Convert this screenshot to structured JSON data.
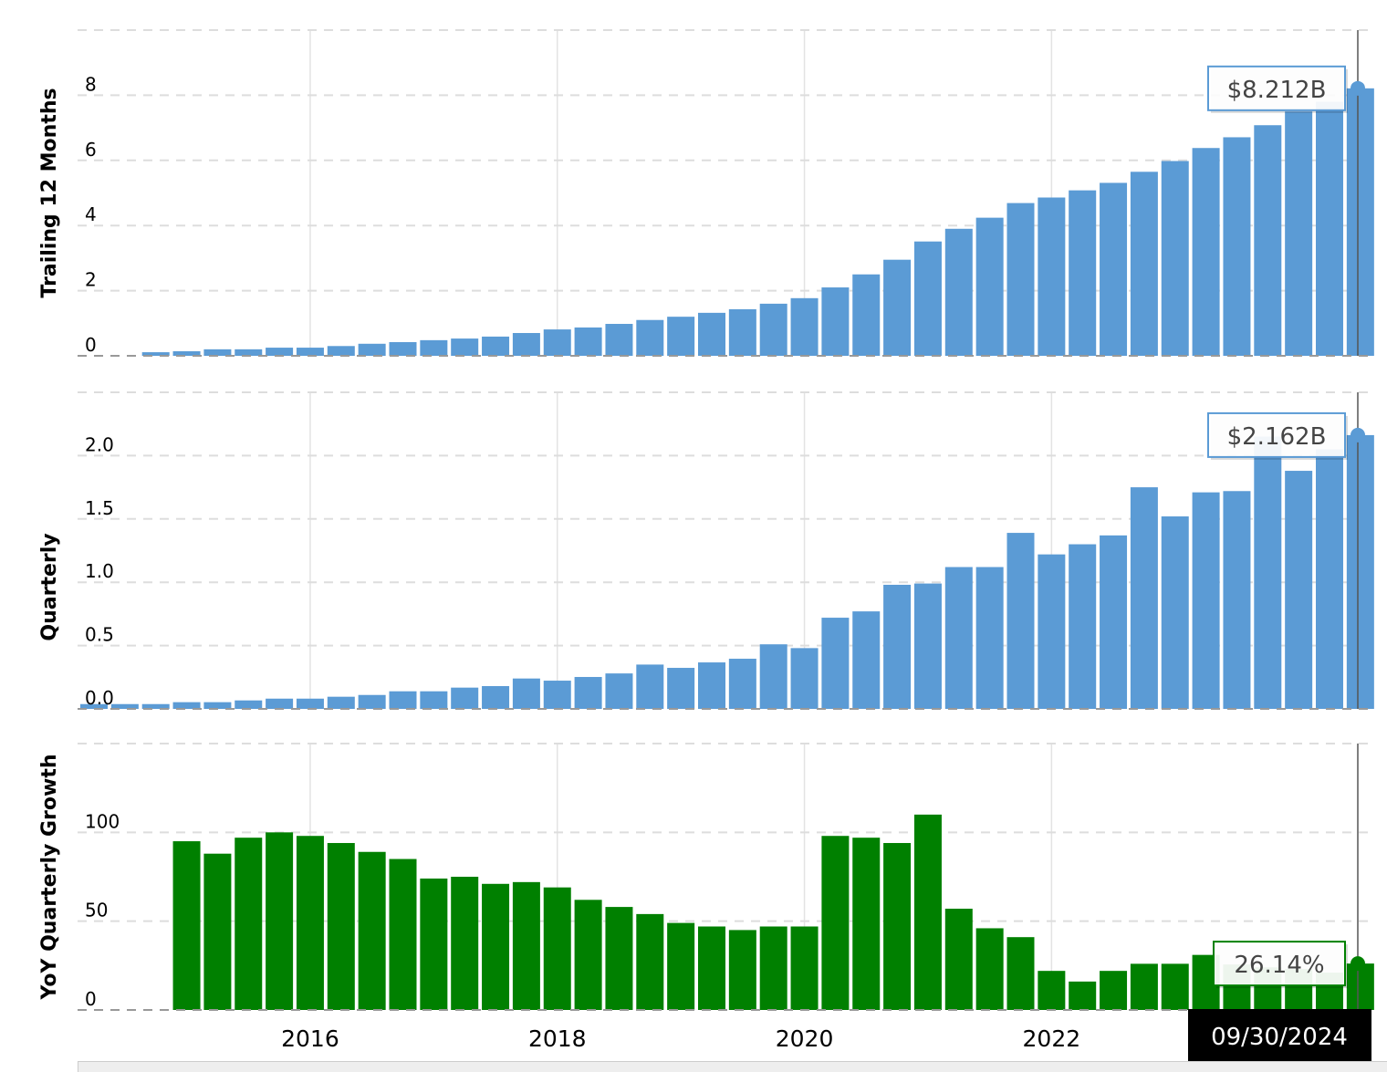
{
  "chart_data": [
    {
      "type": "bar",
      "ylabel": "Trailing 12 Months",
      "yticks": [
        "0",
        "2",
        "4",
        "6",
        "8"
      ],
      "ylim": [
        0,
        10
      ],
      "grid": true,
      "color": "#5b9bd5",
      "first_index": 2,
      "values": [
        0.11,
        0.14,
        0.2,
        0.2,
        0.25,
        0.25,
        0.3,
        0.37,
        0.42,
        0.48,
        0.53,
        0.59,
        0.7,
        0.81,
        0.87,
        0.98,
        1.1,
        1.2,
        1.32,
        1.43,
        1.6,
        1.77,
        2.1,
        2.5,
        2.95,
        3.51,
        3.9,
        4.24,
        4.69,
        4.86,
        5.08,
        5.31,
        5.65,
        5.98,
        6.38,
        6.71,
        7.08,
        7.5,
        7.8,
        8.212
      ],
      "tooltip": "$8.212B"
    },
    {
      "type": "bar",
      "ylabel": "Quarterly",
      "yticks": [
        "0.0",
        "0.5",
        "1.0",
        "1.5",
        "2.0"
      ],
      "ylim": [
        0,
        2.5
      ],
      "grid": true,
      "color": "#5b9bd5",
      "first_index": 0,
      "values": [
        0.038,
        0.038,
        0.038,
        0.053,
        0.053,
        0.067,
        0.081,
        0.081,
        0.096,
        0.11,
        0.139,
        0.139,
        0.168,
        0.18,
        0.24,
        0.223,
        0.252,
        0.28,
        0.35,
        0.324,
        0.367,
        0.396,
        0.51,
        0.48,
        0.72,
        0.77,
        0.98,
        0.99,
        1.12,
        1.12,
        1.39,
        1.22,
        1.3,
        1.37,
        1.75,
        1.52,
        1.71,
        1.72,
        2.15,
        1.88,
        2.05,
        2.162
      ],
      "tooltip": "$2.162B"
    },
    {
      "type": "bar",
      "ylabel": "YoY Quarterly Growth",
      "yticks": [
        "0",
        "50",
        "100"
      ],
      "ylim": [
        0,
        150
      ],
      "grid": true,
      "color": "#008000",
      "first_index": 3,
      "values": [
        95,
        88,
        97,
        100,
        98,
        94,
        89,
        85,
        74,
        75,
        71,
        72,
        69,
        62,
        58,
        54,
        49,
        47,
        45,
        47,
        47,
        98,
        97,
        94,
        110,
        57,
        46,
        41,
        22,
        16,
        22,
        26,
        26,
        31,
        25.6,
        24,
        23,
        21,
        26.14
      ],
      "tooltip": "26.14%"
    }
  ],
  "x_axis": {
    "tick_labels": [
      "2016",
      "2018",
      "2020",
      "2022"
    ],
    "hover_date": "09/30/2024"
  }
}
